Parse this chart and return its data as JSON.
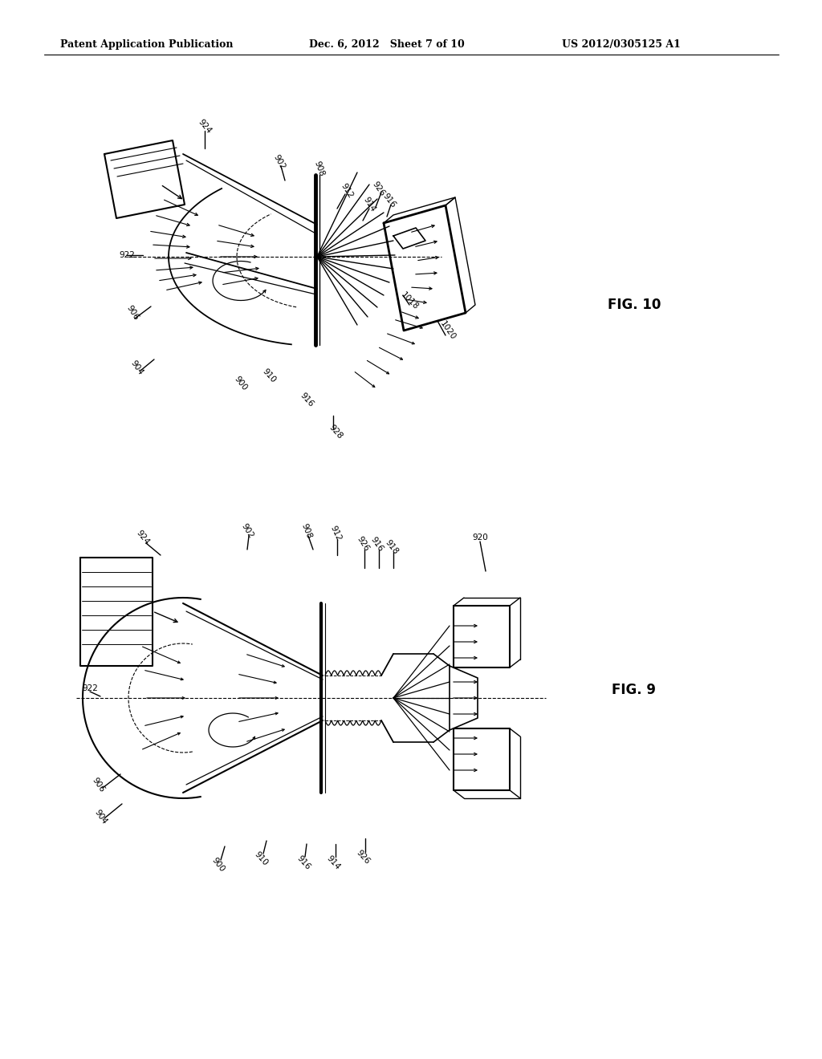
{
  "background_color": "#ffffff",
  "header_left": "Patent Application Publication",
  "header_center": "Dec. 6, 2012   Sheet 7 of 10",
  "header_right": "US 2012/0305125 A1",
  "fig9_label": "FIG. 9",
  "fig10_label": "FIG. 10",
  "line_color": "#000000",
  "text_color": "#000000",
  "fig_label_fontsize": 12,
  "header_fontsize": 9,
  "annotation_fontsize": 7.5
}
